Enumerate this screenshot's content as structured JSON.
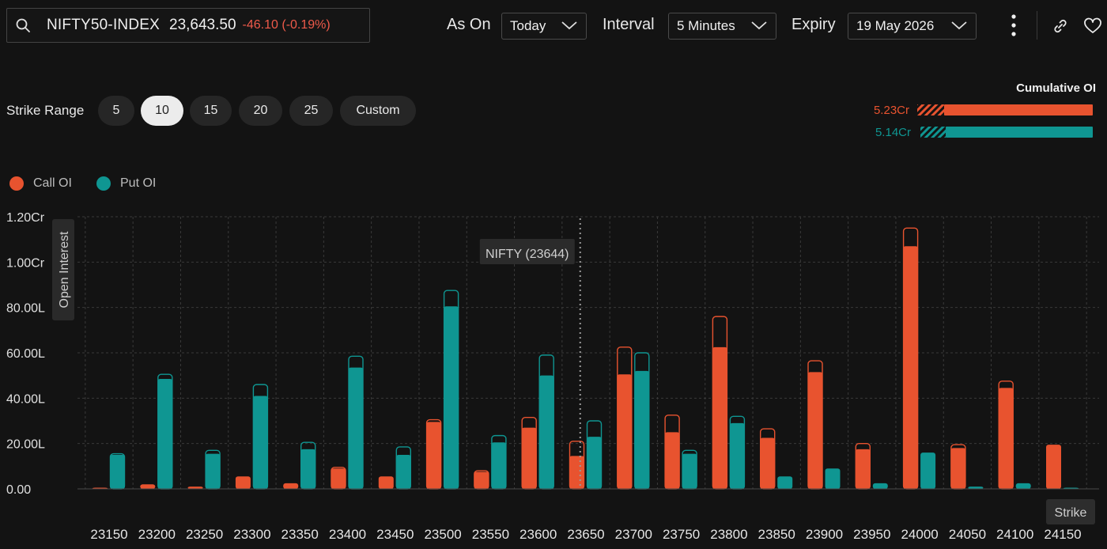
{
  "header": {
    "symbol": "NIFTY50-INDEX",
    "price": "23,643.50",
    "change": "-46.10 (-0.19%)",
    "as_on_label": "As On",
    "as_on_value": "Today",
    "interval_label": "Interval",
    "interval_value": "5 Minutes",
    "expiry_label": "Expiry",
    "expiry_value": "19 May 2026"
  },
  "strike_range": {
    "label": "Strike Range",
    "options": [
      "5",
      "10",
      "15",
      "20",
      "25",
      "Custom"
    ],
    "selected": "10"
  },
  "cumulative_oi": {
    "title": "Cumulative OI",
    "call_value": "5.23Cr",
    "put_value": "5.14Cr"
  },
  "legend": {
    "call_label": "Call OI",
    "put_label": "Put OI"
  },
  "colors": {
    "call": "#e8532f",
    "put": "#0f9692",
    "background": "#131313",
    "grid": "#3a3a3a",
    "text": "#e6e6e6"
  },
  "chart_data": {
    "type": "bar",
    "ylabel": "Open Interest",
    "xlabel": "Strike",
    "y_unit": "lakh",
    "ylim": [
      0,
      120
    ],
    "y_ticks": [
      {
        "value": 0,
        "label": "0.00"
      },
      {
        "value": 20,
        "label": "20.00L"
      },
      {
        "value": 40,
        "label": "40.00L"
      },
      {
        "value": 60,
        "label": "60.00L"
      },
      {
        "value": 80,
        "label": "80.00L"
      },
      {
        "value": 100,
        "label": "1.00Cr"
      },
      {
        "value": 120,
        "label": "1.20Cr"
      }
    ],
    "grid": true,
    "marker": {
      "label": "NIFTY (23644)",
      "value": 23644
    },
    "categories": [
      "23150",
      "23200",
      "23250",
      "23300",
      "23350",
      "23400",
      "23450",
      "23500",
      "23550",
      "23600",
      "23650",
      "23700",
      "23750",
      "23800",
      "23850",
      "23900",
      "23950",
      "24000",
      "24050",
      "24100",
      "24150"
    ],
    "series": [
      {
        "name": "Call OI",
        "values": [
          0.5,
          2,
          1,
          5.5,
          2.5,
          9,
          5.5,
          29.5,
          7.5,
          27,
          14.5,
          50.5,
          25,
          62.5,
          22.5,
          51.5,
          17.5,
          107,
          18,
          44.5,
          19.5
        ],
        "previous": [
          0.5,
          2,
          1,
          5.5,
          2.5,
          9.5,
          5.5,
          30.5,
          8,
          31.5,
          21,
          62.5,
          32.5,
          76,
          26.5,
          56.5,
          20,
          115,
          19.5,
          47.5,
          19.5
        ]
      },
      {
        "name": "Put OI",
        "values": [
          15,
          48.5,
          15.5,
          41,
          17.5,
          53.5,
          15,
          80.5,
          20.5,
          50,
          23,
          52,
          15.5,
          29,
          5.5,
          9,
          2.5,
          16,
          1,
          2.5,
          0.5
        ],
        "previous": [
          15.5,
          50.5,
          17,
          46,
          20.5,
          58.5,
          18.5,
          87.5,
          23.5,
          59,
          30,
          60,
          17,
          32,
          5.5,
          9,
          2.5,
          16,
          1,
          2.5,
          0.5
        ]
      }
    ]
  }
}
